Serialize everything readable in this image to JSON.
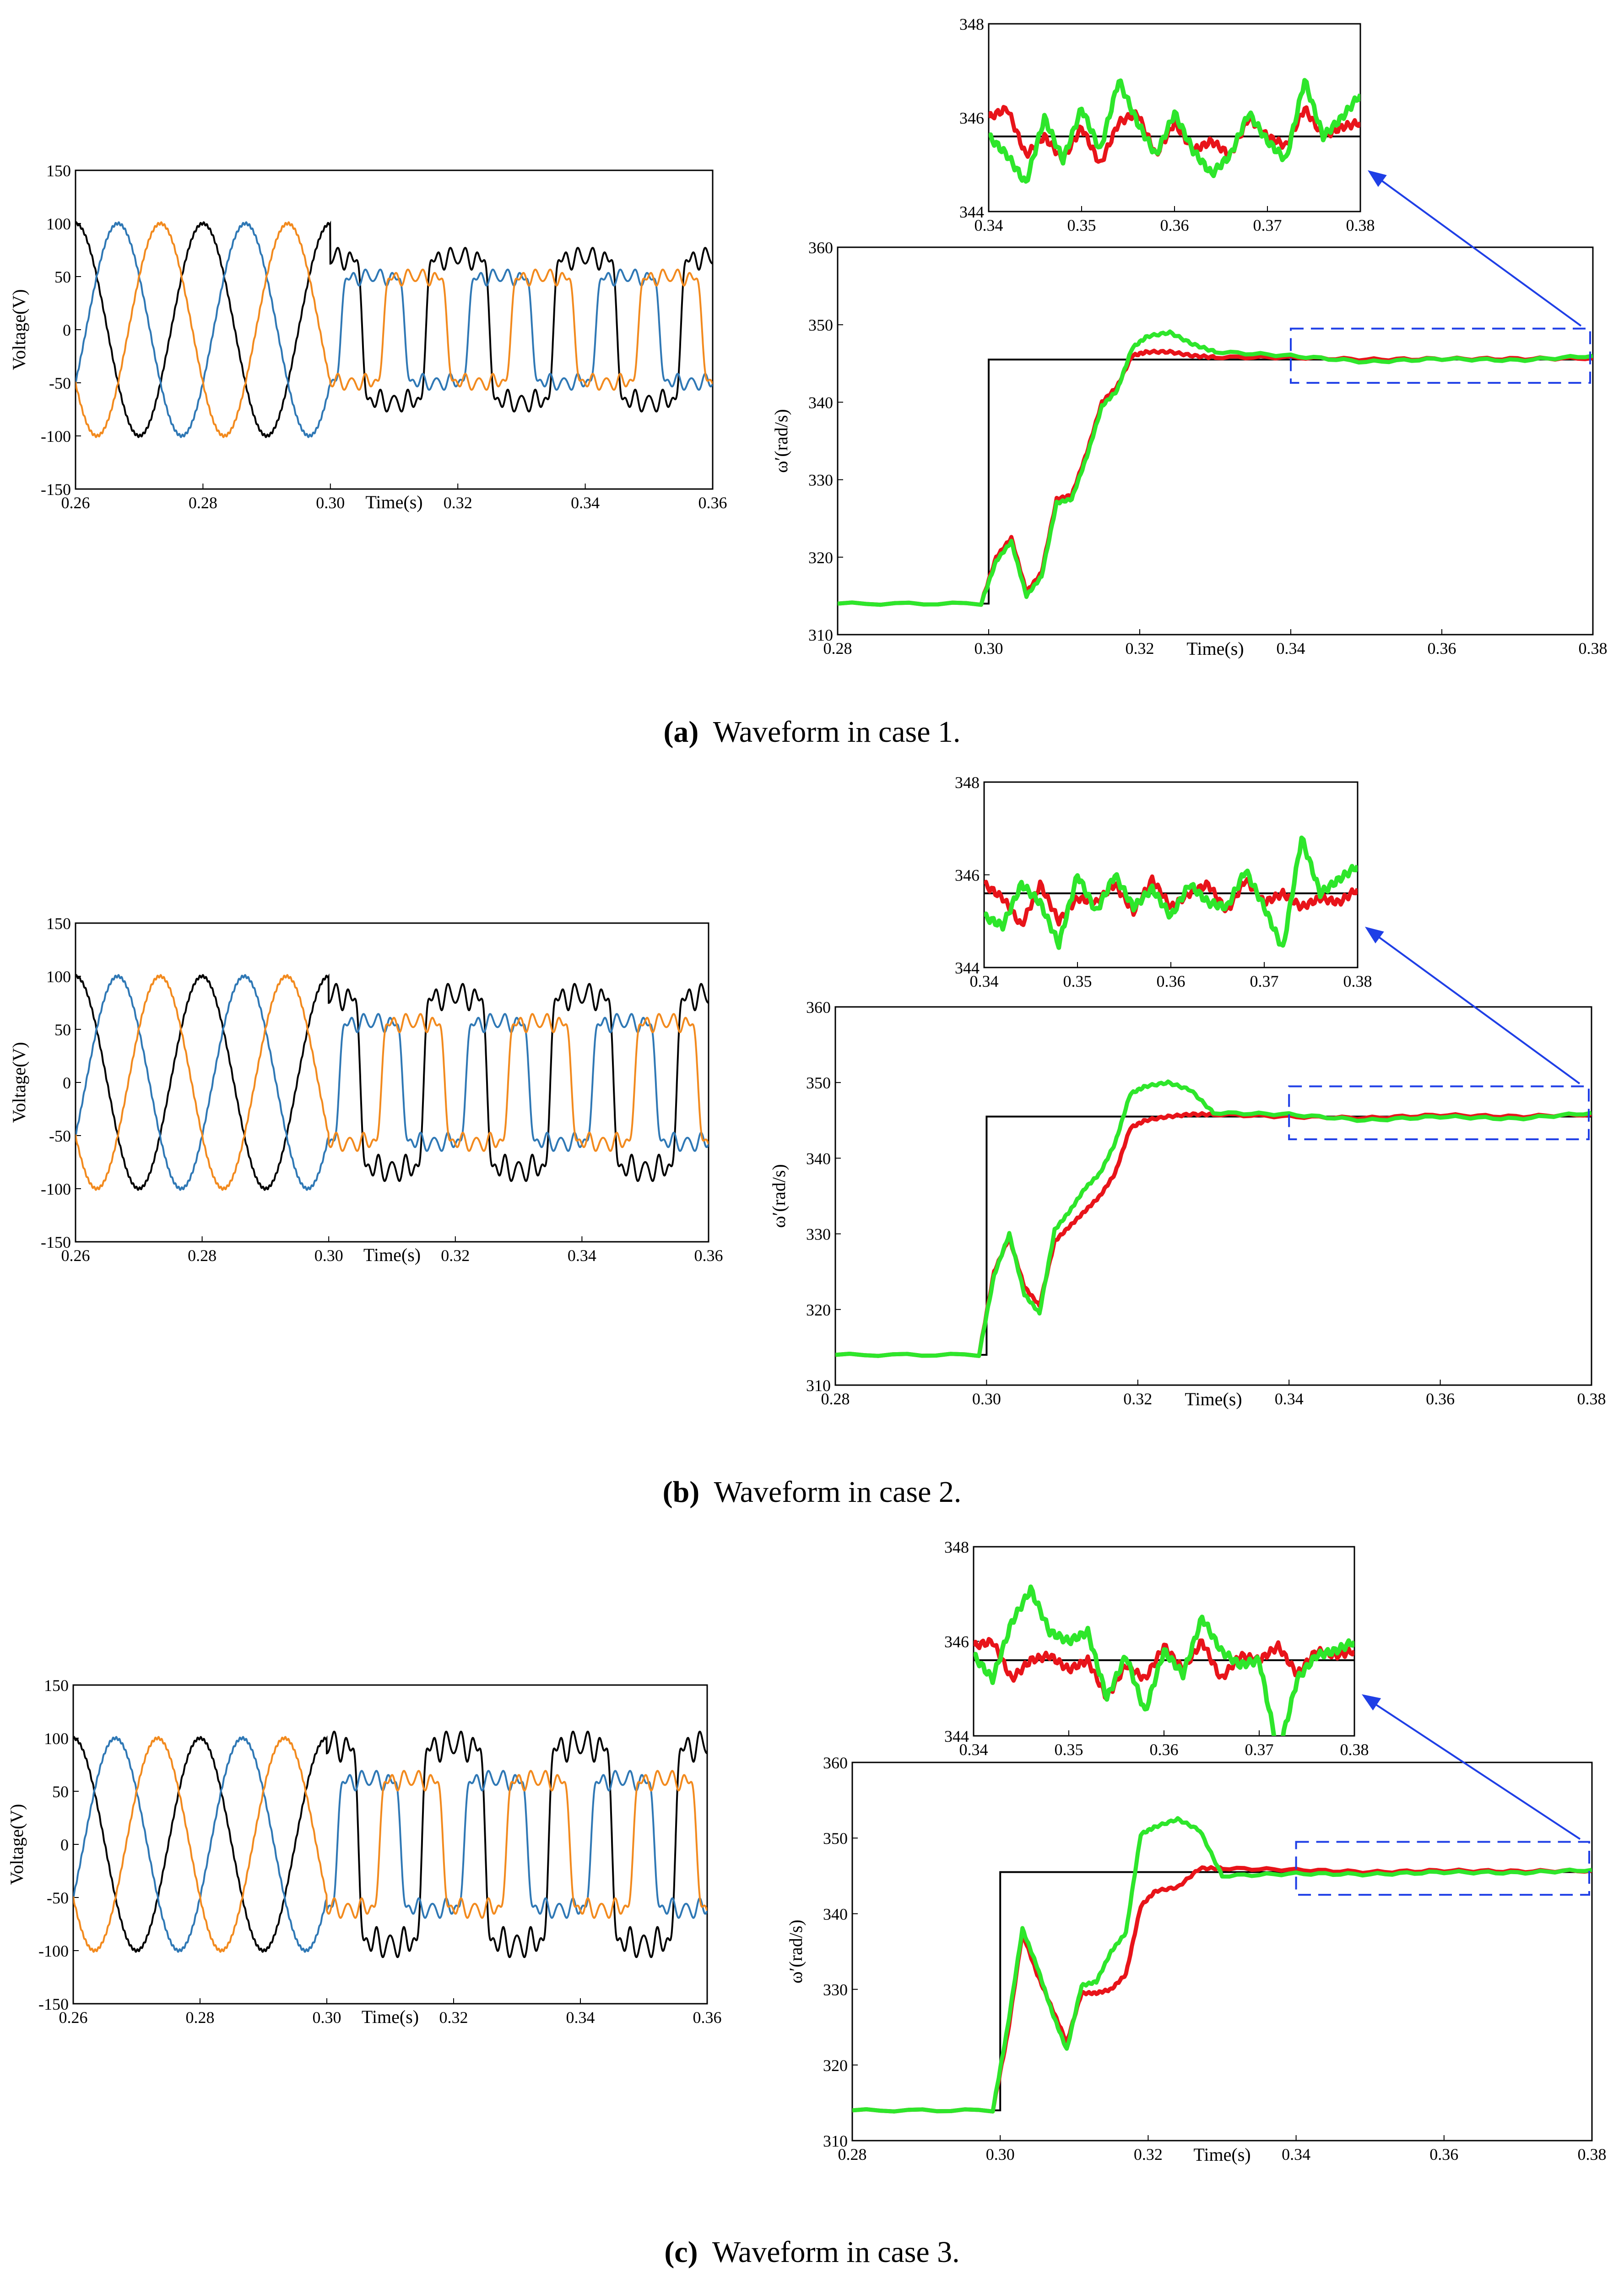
{
  "colors": {
    "phase_a": "#000000",
    "phase_b": "#2f78b5",
    "phase_c": "#f28a1e",
    "reference": "#000000",
    "method_red": "#e8141a",
    "method_green": "#2ee62b",
    "zoom_box": "#1f3fe6",
    "arrow": "#1f3fe6"
  },
  "captions": [
    {
      "tag": "(a)",
      "text": "Waveform in case 1."
    },
    {
      "tag": "(b)",
      "text": "Waveform in case 2."
    },
    {
      "tag": "(c)",
      "text": "Waveform in case 3."
    }
  ],
  "chart_data": [
    {
      "id": "voltage-a",
      "type": "line",
      "title": "",
      "xlabel": "Time(s)",
      "ylabel": "Voltage(V)",
      "xlim": [
        0.26,
        0.36
      ],
      "ylim": [
        -150,
        150
      ],
      "xticks": [
        "0.26",
        "0.28",
        "0.30",
        "0.32",
        "0.34",
        "0.36"
      ],
      "yticks": [
        "150",
        "100",
        "50",
        "0",
        "-50",
        "-100",
        "-150"
      ],
      "grid": false,
      "series": [
        {
          "color_key": "phase_a",
          "amplitude_before": 100,
          "peak_after": 98,
          "phase_deg": 90
        },
        {
          "color_key": "phase_b",
          "amplitude_before": 100,
          "peak_after": 72,
          "phase_deg": -30
        },
        {
          "color_key": "phase_c",
          "amplitude_before": 100,
          "peak_after": 72,
          "phase_deg": 210
        }
      ],
      "fundamental_hz": 50,
      "disturbance_start": 0.3
    },
    {
      "id": "speed-a",
      "type": "line",
      "title": "",
      "xlabel": "Time(s)",
      "ylabel": "ω′(rad/s)",
      "xlim": [
        0.28,
        0.38
      ],
      "ylim": [
        310,
        360
      ],
      "xticks": [
        "0.28",
        "0.30",
        "0.32",
        "0.34",
        "0.36",
        "0.38"
      ],
      "yticks": [
        "360",
        "350",
        "340",
        "330",
        "320",
        "310"
      ],
      "grid": false,
      "reference": {
        "color_key": "reference",
        "x": [
          0.28,
          0.3,
          0.3,
          0.38
        ],
        "y": [
          314,
          314,
          345.5,
          345.5
        ]
      },
      "series": [
        {
          "color_key": "method_red",
          "x": [
            0.28,
            0.299,
            0.301,
            0.303,
            0.305,
            0.307,
            0.309,
            0.311,
            0.313,
            0.315,
            0.317,
            0.319,
            0.321,
            0.324,
            0.327,
            0.33,
            0.34,
            0.35,
            0.36,
            0.37,
            0.38
          ],
          "y": [
            314,
            314,
            320,
            322.5,
            315.5,
            318,
            327.5,
            328,
            333.5,
            340,
            342,
            346,
            346.5,
            346.5,
            346,
            345.8,
            345.8,
            345.5,
            345.6,
            345.6,
            345.7
          ]
        },
        {
          "color_key": "method_green",
          "x": [
            0.28,
            0.299,
            0.301,
            0.303,
            0.305,
            0.307,
            0.309,
            0.311,
            0.313,
            0.315,
            0.317,
            0.319,
            0.321,
            0.324,
            0.327,
            0.33,
            0.34,
            0.35,
            0.36,
            0.37,
            0.38
          ],
          "y": [
            314,
            314,
            319.5,
            322,
            315,
            317.5,
            327,
            327.5,
            333,
            339.5,
            341.5,
            347,
            348.5,
            349,
            347.5,
            346.5,
            346,
            345.2,
            345.6,
            345.4,
            346
          ]
        }
      ],
      "inset": {
        "xlim": [
          0.34,
          0.38
        ],
        "ylim": [
          344,
          348
        ],
        "xticks": [
          "0.34",
          "0.35",
          "0.36",
          "0.37",
          "0.38"
        ],
        "yticks": [
          "348",
          "346",
          "344"
        ],
        "reference_y": 345.6,
        "red": {
          "x": [
            0.34,
            0.342,
            0.344,
            0.346,
            0.348,
            0.35,
            0.352,
            0.354,
            0.356,
            0.358,
            0.36,
            0.362,
            0.364,
            0.366,
            0.368,
            0.37,
            0.372,
            0.374,
            0.376,
            0.378,
            0.38
          ],
          "y": [
            346,
            346.2,
            345.2,
            345.6,
            345.1,
            345.8,
            345,
            345.9,
            346.1,
            345.2,
            345.9,
            345.3,
            345.5,
            345.2,
            346,
            345.6,
            345.4,
            346.2,
            345.6,
            345.8,
            345.9
          ]
        },
        "green": {
          "x": [
            0.34,
            0.342,
            0.344,
            0.346,
            0.348,
            0.35,
            0.352,
            0.354,
            0.356,
            0.358,
            0.36,
            0.362,
            0.364,
            0.366,
            0.368,
            0.37,
            0.372,
            0.374,
            0.376,
            0.378,
            0.38
          ],
          "y": [
            345.6,
            345.2,
            344.6,
            346,
            345.1,
            346.2,
            345.3,
            346.8,
            345.9,
            345.2,
            346.1,
            345.3,
            344.8,
            345.2,
            346.1,
            345.5,
            345.1,
            346.8,
            345.6,
            346,
            346.5
          ]
        }
      }
    },
    {
      "id": "voltage-b",
      "type": "line",
      "title": "",
      "xlabel": "Time(s)",
      "ylabel": "Voltage(V)",
      "xlim": [
        0.26,
        0.36
      ],
      "ylim": [
        -150,
        150
      ],
      "xticks": [
        "0.26",
        "0.28",
        "0.30",
        "0.32",
        "0.34",
        "0.36"
      ],
      "yticks": [
        "150",
        "100",
        "50",
        "0",
        "-50",
        "-100",
        "-150"
      ],
      "grid": false,
      "series": [
        {
          "color_key": "phase_a",
          "amplitude_before": 100,
          "peak_after": 118,
          "phase_deg": 90
        },
        {
          "color_key": "phase_b",
          "amplitude_before": 100,
          "peak_after": 82,
          "phase_deg": -30
        },
        {
          "color_key": "phase_c",
          "amplitude_before": 100,
          "peak_after": 82,
          "phase_deg": 210
        }
      ],
      "fundamental_hz": 50,
      "disturbance_start": 0.3
    },
    {
      "id": "speed-b",
      "type": "line",
      "title": "",
      "xlabel": "Time(s)",
      "ylabel": "ω′(rad/s)",
      "xlim": [
        0.28,
        0.38
      ],
      "ylim": [
        310,
        360
      ],
      "xticks": [
        "0.28",
        "0.30",
        "0.32",
        "0.34",
        "0.36",
        "0.38"
      ],
      "yticks": [
        "360",
        "350",
        "340",
        "330",
        "320",
        "310"
      ],
      "grid": false,
      "reference": {
        "color_key": "reference",
        "x": [
          0.28,
          0.3,
          0.3,
          0.38
        ],
        "y": [
          314,
          314,
          345.5,
          345.5
        ]
      },
      "series": [
        {
          "color_key": "method_red",
          "x": [
            0.28,
            0.299,
            0.301,
            0.303,
            0.305,
            0.307,
            0.309,
            0.311,
            0.313,
            0.315,
            0.317,
            0.319,
            0.321,
            0.324,
            0.327,
            0.33,
            0.34,
            0.35,
            0.36,
            0.37,
            0.38
          ],
          "y": [
            314,
            314,
            325,
            329.5,
            323,
            320.5,
            329,
            331,
            333,
            335,
            338,
            344,
            345,
            345.5,
            345.8,
            345.8,
            345.5,
            345.3,
            345.7,
            345.5,
            345.8
          ]
        },
        {
          "color_key": "method_green",
          "x": [
            0.28,
            0.299,
            0.301,
            0.303,
            0.305,
            0.307,
            0.309,
            0.311,
            0.313,
            0.315,
            0.317,
            0.319,
            0.321,
            0.324,
            0.327,
            0.33,
            0.34,
            0.35,
            0.36,
            0.37,
            0.38
          ],
          "y": [
            314,
            314,
            324.5,
            330,
            322,
            319.5,
            330.5,
            333,
            336,
            338,
            342,
            348.5,
            349.5,
            350,
            349,
            346,
            345.8,
            345,
            345.5,
            345.2,
            346
          ]
        }
      ],
      "inset": {
        "xlim": [
          0.34,
          0.38
        ],
        "ylim": [
          344,
          348
        ],
        "xticks": [
          "0.34",
          "0.35",
          "0.36",
          "0.37",
          "0.38"
        ],
        "yticks": [
          "348",
          "346",
          "344"
        ],
        "reference_y": 345.6,
        "red": {
          "x": [
            0.34,
            0.342,
            0.344,
            0.346,
            0.348,
            0.35,
            0.352,
            0.354,
            0.356,
            0.358,
            0.36,
            0.362,
            0.364,
            0.366,
            0.368,
            0.37,
            0.372,
            0.374,
            0.376,
            0.378,
            0.38
          ],
          "y": [
            345.8,
            345.5,
            344.9,
            345.8,
            345,
            345.5,
            345.4,
            345.8,
            345.2,
            345.9,
            345.3,
            345.6,
            345.8,
            345.2,
            345.9,
            345.4,
            345.6,
            345.3,
            345.5,
            345.4,
            345.7
          ]
        },
        "green": {
          "x": [
            0.34,
            0.342,
            0.344,
            0.346,
            0.348,
            0.35,
            0.352,
            0.354,
            0.356,
            0.358,
            0.36,
            0.362,
            0.364,
            0.366,
            0.368,
            0.37,
            0.372,
            0.374,
            0.376,
            0.378,
            0.38
          ],
          "y": [
            345.1,
            344.9,
            345.8,
            345.4,
            344.5,
            346,
            345.2,
            346,
            345.3,
            345.7,
            345.1,
            345.8,
            345.4,
            345.3,
            346.1,
            345.3,
            344.4,
            346.8,
            345.6,
            345.9,
            346.2
          ]
        }
      }
    },
    {
      "id": "voltage-c",
      "type": "line",
      "title": "",
      "xlabel": "Time(s)",
      "ylabel": "Voltage(V)",
      "xlim": [
        0.26,
        0.36
      ],
      "ylim": [
        -150,
        150
      ],
      "xticks": [
        "0.26",
        "0.28",
        "0.30",
        "0.32",
        "0.34",
        "0.36"
      ],
      "yticks": [
        "150",
        "100",
        "50",
        "0",
        "-50",
        "-100",
        "-150"
      ],
      "grid": false,
      "series": [
        {
          "color_key": "phase_a",
          "amplitude_before": 100,
          "peak_after": 135,
          "phase_deg": 90
        },
        {
          "color_key": "phase_b",
          "amplitude_before": 100,
          "peak_after": 88,
          "phase_deg": -30
        },
        {
          "color_key": "phase_c",
          "amplitude_before": 100,
          "peak_after": 88,
          "phase_deg": 210
        }
      ],
      "fundamental_hz": 50,
      "disturbance_start": 0.3
    },
    {
      "id": "speed-c",
      "type": "line",
      "title": "",
      "xlabel": "Time(s)",
      "ylabel": "ω′(rad/s)",
      "xlim": [
        0.28,
        0.38
      ],
      "ylim": [
        310,
        360
      ],
      "xticks": [
        "0.28",
        "0.30",
        "0.32",
        "0.34",
        "0.36",
        "0.38"
      ],
      "yticks": [
        "360",
        "350",
        "340",
        "330",
        "320",
        "310"
      ],
      "grid": false,
      "reference": {
        "color_key": "reference",
        "x": [
          0.28,
          0.3,
          0.3,
          0.38
        ],
        "y": [
          314,
          314,
          345.5,
          345.5
        ]
      },
      "series": [
        {
          "color_key": "method_red",
          "x": [
            0.28,
            0.299,
            0.301,
            0.303,
            0.305,
            0.307,
            0.309,
            0.311,
            0.313,
            0.315,
            0.317,
            0.319,
            0.321,
            0.324,
            0.327,
            0.33,
            0.34,
            0.35,
            0.36,
            0.37,
            0.38
          ],
          "y": [
            314,
            314,
            324,
            337.5,
            332,
            327.5,
            323,
            329.5,
            329.5,
            330,
            332,
            341,
            343,
            343.5,
            346,
            346,
            345.8,
            345.5,
            345.7,
            345.6,
            345.7
          ]
        },
        {
          "color_key": "method_green",
          "x": [
            0.28,
            0.299,
            0.301,
            0.303,
            0.305,
            0.307,
            0.309,
            0.311,
            0.313,
            0.315,
            0.317,
            0.319,
            0.321,
            0.324,
            0.327,
            0.33,
            0.34,
            0.35,
            0.36,
            0.37,
            0.38
          ],
          "y": [
            314,
            314,
            325,
            338,
            333,
            327,
            322,
            330.5,
            331,
            335,
            337.5,
            350.5,
            351.5,
            352.5,
            351,
            345,
            345.3,
            345.2,
            345.5,
            345.4,
            345.8
          ]
        }
      ],
      "inset": {
        "xlim": [
          0.34,
          0.38
        ],
        "ylim": [
          344,
          348
        ],
        "xticks": [
          "0.34",
          "0.35",
          "0.36",
          "0.37",
          "0.38"
        ],
        "yticks": [
          "348",
          "346",
          "344"
        ],
        "reference_y": 345.6,
        "red": {
          "x": [
            0.34,
            0.342,
            0.344,
            0.346,
            0.348,
            0.35,
            0.352,
            0.354,
            0.356,
            0.358,
            0.36,
            0.362,
            0.364,
            0.366,
            0.368,
            0.37,
            0.372,
            0.374,
            0.376,
            0.378,
            0.38
          ],
          "y": [
            345.9,
            346,
            345.2,
            345.6,
            345.7,
            345.4,
            345.6,
            344.8,
            345.5,
            345.2,
            345.9,
            345.4,
            346,
            345.2,
            345.7,
            345.6,
            345.9,
            345.3,
            345.8,
            345.7,
            345.8
          ]
        },
        "green": {
          "x": [
            0.34,
            0.342,
            0.344,
            0.346,
            0.348,
            0.35,
            0.352,
            0.354,
            0.356,
            0.358,
            0.36,
            0.362,
            0.364,
            0.366,
            0.368,
            0.37,
            0.372,
            0.374,
            0.376,
            0.378,
            0.38
          ],
          "y": [
            345.7,
            345.2,
            346.4,
            347.1,
            346.2,
            346,
            346.2,
            344.8,
            345.7,
            344.5,
            345.8,
            345.3,
            346.5,
            345.8,
            345.5,
            345.6,
            343.6,
            345.2,
            345.7,
            345.8,
            346
          ]
        }
      }
    }
  ]
}
